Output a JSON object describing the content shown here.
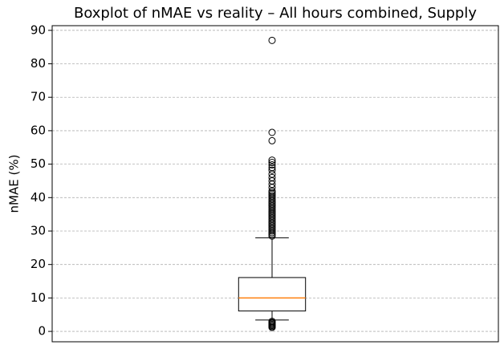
{
  "chart_data": {
    "type": "boxplot",
    "title": "Boxplot of nMAE vs reality – All hours combined, Supply",
    "y_label": "nMAE (%)",
    "categories": [
      null
    ],
    "ylim": [
      -3.1,
      91.4
    ],
    "yticks": [
      0,
      10,
      20,
      30,
      40,
      50,
      60,
      70,
      80,
      90
    ],
    "grid": true,
    "box_color": "#000000",
    "median_color": "#ff7f0e",
    "series": [
      {
        "q1": 6.1,
        "median": 10.0,
        "q3": 16.1,
        "whisker_low": 3.4,
        "whisker_high": 28.0,
        "outliers": [
          87.0,
          59.5,
          57.0,
          51.2,
          50.5,
          49.8,
          49.0,
          48.2,
          47.0,
          46.0,
          45.0,
          44.0,
          43.0,
          42.0,
          41.5,
          41.0,
          40.5,
          40.0,
          39.5,
          39.0,
          38.5,
          38.0,
          37.5,
          37.0,
          36.5,
          36.0,
          35.5,
          35.0,
          34.5,
          34.0,
          33.5,
          33.0,
          32.5,
          32.0,
          31.5,
          31.0,
          30.5,
          30.0,
          29.5,
          29.0,
          28.5,
          3.0,
          2.7,
          2.4,
          2.1,
          1.8,
          1.5,
          1.2
        ]
      }
    ]
  }
}
